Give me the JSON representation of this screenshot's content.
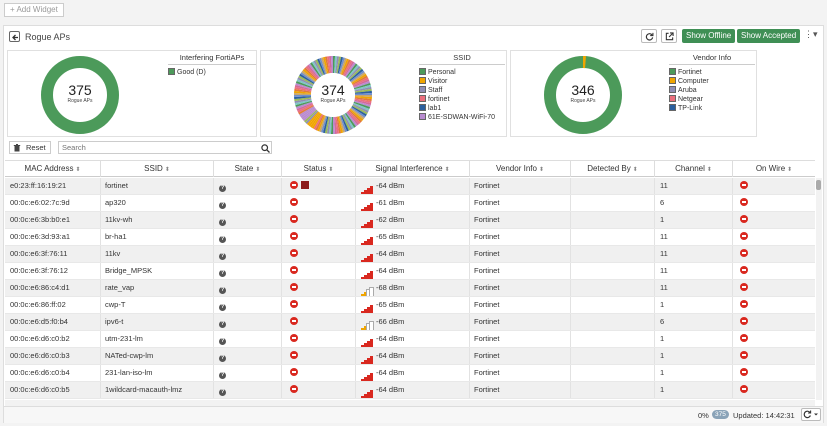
{
  "toolbar": {
    "add_widget": "Add Widget"
  },
  "panel": {
    "title": "Rogue APs",
    "show_offline": "Show Offline",
    "show_accepted": "Show Accepted",
    "more": "⋮▾"
  },
  "cards": [
    {
      "title": "Interfering FortiAPs",
      "total": "375",
      "unit": "Rogue APs",
      "legend": [
        {
          "label": "Good (D)",
          "color": "#4c9a5a"
        }
      ]
    },
    {
      "title": "SSID",
      "total": "374",
      "unit": "Rogue APs",
      "legend": [
        {
          "label": "Personal",
          "color": "#4c9a5a"
        },
        {
          "label": "Visitor",
          "color": "#f0a500"
        },
        {
          "label": "Staff",
          "color": "#8f8fb5"
        },
        {
          "label": "fortinet",
          "color": "#ec6f7d"
        },
        {
          "label": "lab1",
          "color": "#2b5f9e"
        },
        {
          "label": "61E-SDWAN-WiFi-70",
          "color": "#b98bd0"
        }
      ]
    },
    {
      "title": "Vendor Info",
      "total": "346",
      "unit": "Rogue APs",
      "legend": [
        {
          "label": "Fortinet",
          "color": "#4c9a5a"
        },
        {
          "label": "Computer",
          "color": "#f0a500"
        },
        {
          "label": "Aruba",
          "color": "#8f8fb5"
        },
        {
          "label": "Netgear",
          "color": "#ec6f7d"
        },
        {
          "label": "TP-Link",
          "color": "#2b5f9e"
        }
      ]
    }
  ],
  "filter": {
    "reset": "Reset",
    "search_placeholder": "Search"
  },
  "columns": [
    "MAC Address",
    "SSID",
    "State",
    "Status",
    "Signal Interference",
    "Vendor Info",
    "Detected By",
    "Channel",
    "On Wire"
  ],
  "rows": [
    {
      "mac": "e0:23:ff:16:19:21",
      "ssid": "fortinet",
      "signal": "-64 dBm",
      "level": 4,
      "vendor": "Fortinet",
      "channel": "11",
      "extra": true
    },
    {
      "mac": "00:0c:e6:02:7c:9d",
      "ssid": "ap320",
      "signal": "-61 dBm",
      "level": 4,
      "vendor": "Fortinet",
      "channel": "6"
    },
    {
      "mac": "00:0c:e6:3b:b0:e1",
      "ssid": "11kv-wh",
      "signal": "-62 dBm",
      "level": 4,
      "vendor": "Fortinet",
      "channel": "1"
    },
    {
      "mac": "00:0c:e6:3d:93:a1",
      "ssid": "br-ha1",
      "signal": "-65 dBm",
      "level": 4,
      "vendor": "Fortinet",
      "channel": "11"
    },
    {
      "mac": "00:0c:e6:3f:76:11",
      "ssid": "11kv",
      "signal": "-64 dBm",
      "level": 4,
      "vendor": "Fortinet",
      "channel": "11"
    },
    {
      "mac": "00:0c:e6:3f:76:12",
      "ssid": "Bridge_MPSK",
      "signal": "-64 dBm",
      "level": 4,
      "vendor": "Fortinet",
      "channel": "11"
    },
    {
      "mac": "00:0c:e6:86:c4:d1",
      "ssid": "rate_vap",
      "signal": "-68 dBm",
      "level": 2,
      "vendor": "Fortinet",
      "channel": "11"
    },
    {
      "mac": "00:0c:e6:86:ff:02",
      "ssid": "cwp-T",
      "signal": "-65 dBm",
      "level": 4,
      "vendor": "Fortinet",
      "channel": "1"
    },
    {
      "mac": "00:0c:e6:d5:f0:b4",
      "ssid": "ipv6-t",
      "signal": "-66 dBm",
      "level": 2,
      "vendor": "Fortinet",
      "channel": "6"
    },
    {
      "mac": "00:0c:e6:d6:c0:b2",
      "ssid": "utm-231-lm",
      "signal": "-64 dBm",
      "level": 4,
      "vendor": "Fortinet",
      "channel": "1"
    },
    {
      "mac": "00:0c:e6:d6:c0:b3",
      "ssid": "NATed-cwp-lm",
      "signal": "-64 dBm",
      "level": 4,
      "vendor": "Fortinet",
      "channel": "1"
    },
    {
      "mac": "00:0c:e6:d6:c0:b4",
      "ssid": "231-lan-iso-lm",
      "signal": "-64 dBm",
      "level": 4,
      "vendor": "Fortinet",
      "channel": "1"
    },
    {
      "mac": "00:0c:e6:d6:c0:b5",
      "ssid": "1wildcard-macauth-lmz",
      "signal": "-64 dBm",
      "level": 4,
      "vendor": "Fortinet",
      "channel": "1"
    }
  ],
  "footer": {
    "percent": "0%",
    "count": "375",
    "updated": "Updated: 14:42:31"
  }
}
